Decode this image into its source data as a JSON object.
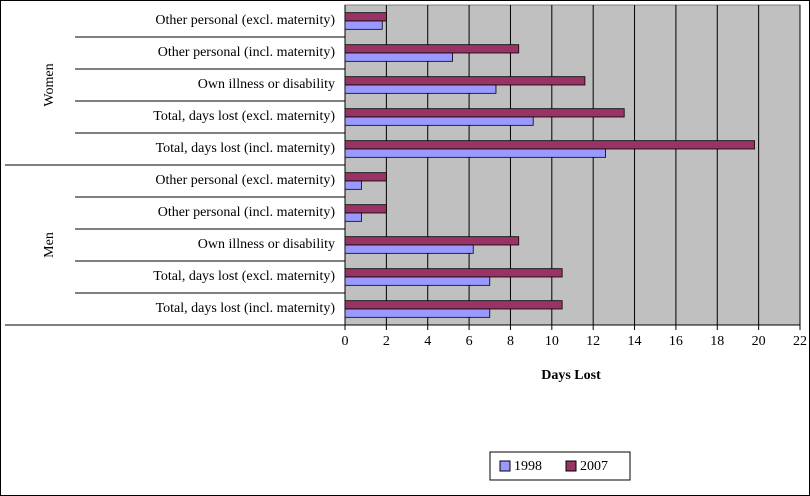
{
  "chart_data": {
    "type": "hbar",
    "x_label": "Days Lost",
    "groups": [
      {
        "name": "Women",
        "size": 5
      },
      {
        "name": "Men",
        "size": 5
      }
    ],
    "categories": [
      "Other personal (excl. maternity)",
      "Other personal (incl. maternity)",
      "Own illness or disability",
      "Total, days lost (excl. maternity)",
      "Total, days lost (incl. maternity)",
      "Other personal (excl. maternity)",
      "Other personal (incl. maternity)",
      "Own illness or disability",
      "Total, days lost (excl. maternity)",
      "Total, days lost (incl. maternity)"
    ],
    "series": [
      {
        "name": "2007",
        "color": "#993366",
        "values": [
          2.0,
          8.4,
          11.6,
          13.5,
          19.8,
          2.0,
          2.0,
          8.4,
          10.5,
          10.5
        ]
      },
      {
        "name": "1998",
        "color": "#9999ff",
        "values": [
          1.8,
          5.2,
          7.3,
          9.1,
          12.6,
          0.8,
          0.8,
          6.2,
          7.0,
          7.0
        ]
      }
    ],
    "legend_order": [
      1,
      0
    ],
    "xlim": [
      0,
      22
    ],
    "xticks": [
      0,
      2,
      4,
      6,
      8,
      10,
      12,
      14,
      16,
      18,
      20,
      22
    ],
    "grid": true,
    "plot_background": "#c0c0c0",
    "legend": "bottom"
  }
}
